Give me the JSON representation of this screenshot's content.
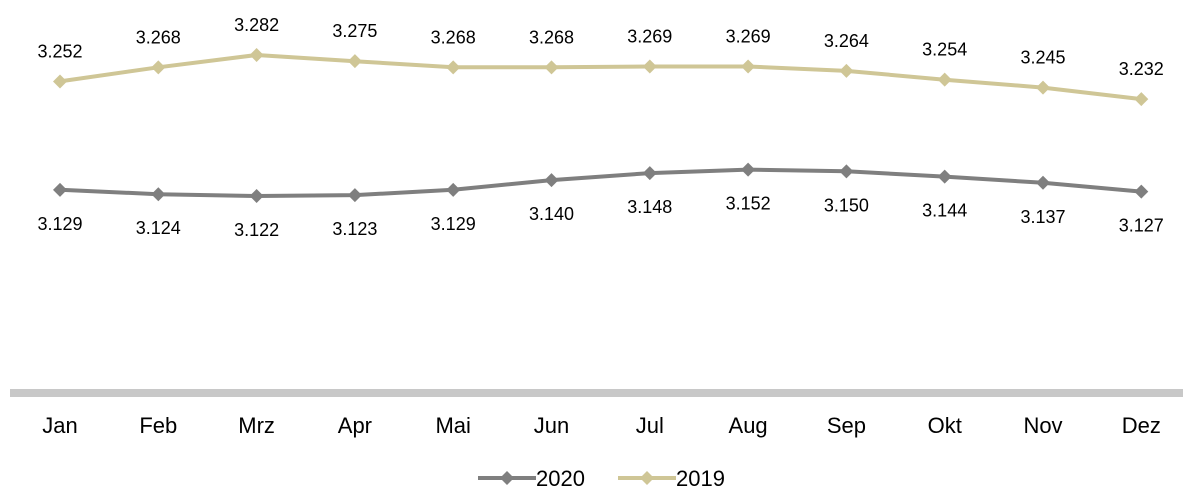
{
  "chart_data": {
    "type": "line",
    "categories": [
      "Jan",
      "Feb",
      "Mrz",
      "Apr",
      "Mai",
      "Jun",
      "Jul",
      "Aug",
      "Sep",
      "Okt",
      "Nov",
      "Dez"
    ],
    "series": [
      {
        "name": "2020",
        "color": "#7f7f7f",
        "values": [
          3.129,
          3.124,
          3.122,
          3.123,
          3.129,
          3.14,
          3.148,
          3.152,
          3.15,
          3.144,
          3.137,
          3.127
        ],
        "labels": [
          "3.129",
          "3.124",
          "3.122",
          "3.123",
          "3.129",
          "3.140",
          "3.148",
          "3.152",
          "3.150",
          "3.144",
          "3.137",
          "3.127"
        ],
        "label_position": "below"
      },
      {
        "name": "2019",
        "color": "#cfc696",
        "values": [
          3.252,
          3.268,
          3.282,
          3.275,
          3.268,
          3.268,
          3.269,
          3.269,
          3.264,
          3.254,
          3.245,
          3.232
        ],
        "labels": [
          "3.252",
          "3.268",
          "3.282",
          "3.275",
          "3.268",
          "3.268",
          "3.269",
          "3.269",
          "3.264",
          "3.254",
          "3.245",
          "3.232"
        ],
        "label_position": "above"
      }
    ],
    "axis_color": "#c8c8c8",
    "grid": false,
    "legend_position": "bottom"
  }
}
